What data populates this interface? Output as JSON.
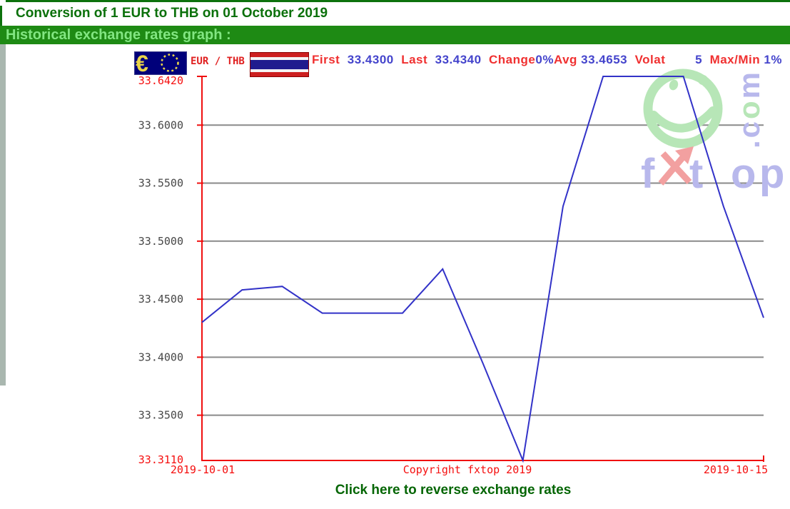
{
  "page": {
    "title": "Conversion of 1 EUR to THB on 01 October 2019",
    "banner_title": "Historical exchange rates graph :",
    "reverse_link_label": "Click here to reverse exchange rates"
  },
  "chart_header": {
    "pair_label": "EUR / THB",
    "stats": [
      {
        "label": "First",
        "pre": "  ",
        "value": "33.4300",
        "post": "  "
      },
      {
        "label": "Last",
        "pre": "  ",
        "value": "33.4340",
        "post": "  "
      },
      {
        "label": "Change",
        "pre": "",
        "value": "0%",
        "post": ""
      },
      {
        "label": "Avg",
        "pre": " ",
        "value": "33.4653",
        "post": "  "
      },
      {
        "label": "Volat",
        "pre": "        ",
        "value": "5",
        "post": "  "
      },
      {
        "label": "Max/Min",
        "pre": " ",
        "value": "1%",
        "post": ""
      }
    ]
  },
  "chart_data": {
    "type": "line",
    "x": [
      "2019-10-01",
      "2019-10-02",
      "2019-10-03",
      "2019-10-04",
      "2019-10-05",
      "2019-10-06",
      "2019-10-07",
      "2019-10-08",
      "2019-10-09",
      "2019-10-10",
      "2019-10-11",
      "2019-10-12",
      "2019-10-13",
      "2019-10-14",
      "2019-10-15"
    ],
    "values": [
      33.43,
      33.458,
      33.461,
      33.438,
      33.438,
      33.438,
      33.476,
      33.395,
      33.311,
      33.53,
      33.642,
      33.642,
      33.642,
      33.53,
      33.434
    ],
    "ylim": [
      33.311,
      33.642
    ],
    "y_axis_top_label": {
      "text": "33.6420",
      "value": 33.642
    },
    "y_axis_bottom_label": {
      "text": "33.3110",
      "value": 33.311
    },
    "yticks": [
      {
        "label": "33.6000",
        "value": 33.6
      },
      {
        "label": "33.5500",
        "value": 33.55
      },
      {
        "label": "33.5000",
        "value": 33.5
      },
      {
        "label": "33.4500",
        "value": 33.45
      },
      {
        "label": "33.4000",
        "value": 33.4
      },
      {
        "label": "33.3500",
        "value": 33.35
      }
    ],
    "copyright": "Copyright fxtop 2019",
    "grid": true,
    "legend": "none",
    "colors": {
      "line": "#3232c8",
      "axis": "#f01010",
      "grid": "#8a8a8a",
      "tick_text": "#474747",
      "axis_text": "#f50f0f",
      "wm_green": "#b7e6b7",
      "wm_purple": "#b8b8ec",
      "wm_pink": "#f2a0a0"
    }
  },
  "watermark": {
    "brand_letters": [
      "f",
      "t",
      "o",
      "p"
    ],
    "tld": ".com"
  }
}
